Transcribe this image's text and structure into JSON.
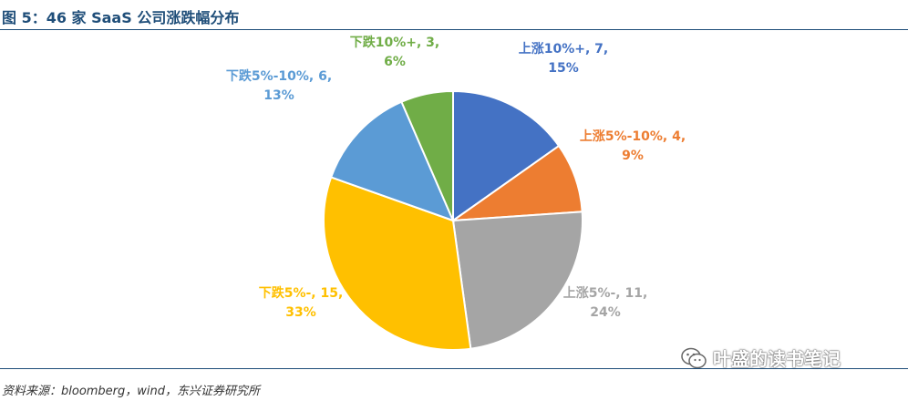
{
  "header": {
    "title": "图 5：46 家 SaaS 公司涨跌幅分布"
  },
  "footer": {
    "source": "资料来源：bloomberg，wind，东兴证券研究所"
  },
  "watermark": {
    "text": "叶盛的读书笔记",
    "icon": "wechat-icon"
  },
  "chart_data": {
    "type": "pie",
    "title": "图 5：46 家 SaaS 公司涨跌幅分布",
    "start_angle_deg": 0,
    "direction": "clockwise",
    "slices": [
      {
        "name": "上涨10%+",
        "value": 7,
        "percent": "15%",
        "color": "#4472c4",
        "label_line1": "上涨10%+, 7,",
        "label_line2": "15%"
      },
      {
        "name": "上涨5%-10%",
        "value": 4,
        "percent": "9%",
        "color": "#ed7d31",
        "label_line1": "上涨5%-10%, 4,",
        "label_line2": "9%"
      },
      {
        "name": "上涨5%-",
        "value": 11,
        "percent": "24%",
        "color": "#a5a5a5",
        "label_line1": "上涨5%-, 11,",
        "label_line2": "24%"
      },
      {
        "name": "下跌5%-",
        "value": 15,
        "percent": "33%",
        "color": "#ffc000",
        "label_line1": "下跌5%-, 15,",
        "label_line2": "33%"
      },
      {
        "name": "下跌5%-10%",
        "value": 6,
        "percent": "13%",
        "color": "#5b9bd5",
        "label_line1": "下跌5%-10%, 6,",
        "label_line2": "13%"
      },
      {
        "name": "下跌10%+",
        "value": 3,
        "percent": "6%",
        "color": "#70ad47",
        "label_line1": "下跌10%+, 3,",
        "label_line2": "6%"
      }
    ]
  }
}
